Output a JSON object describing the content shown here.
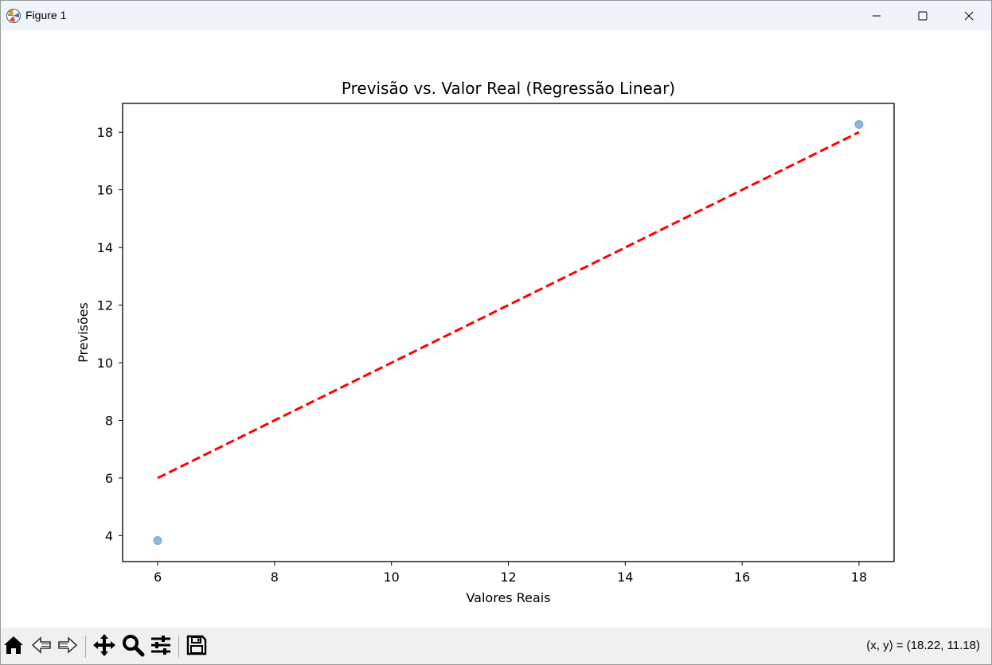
{
  "window": {
    "title": "Figure 1",
    "icons": {
      "app": "matplotlib-icon",
      "minimize": "minimize-icon",
      "maximize": "maximize-icon",
      "close": "close-icon"
    }
  },
  "toolbar": {
    "tools": [
      {
        "name": "home",
        "icon": "home-icon"
      },
      {
        "name": "back",
        "icon": "back-arrow-icon"
      },
      {
        "name": "forward",
        "icon": "forward-arrow-icon"
      },
      {
        "name": "pan",
        "icon": "move-icon"
      },
      {
        "name": "zoom",
        "icon": "zoom-icon"
      },
      {
        "name": "configure-subplots",
        "icon": "sliders-icon"
      },
      {
        "name": "save",
        "icon": "save-icon"
      }
    ],
    "coords_text": "(x, y) = (18.22, 11.18)"
  },
  "chart_data": {
    "type": "scatter",
    "title": "Previsão vs. Valor Real (Regressão Linear)",
    "xlabel": "Valores Reais",
    "ylabel": "Previsões",
    "xlim": [
      5.4,
      18.6
    ],
    "ylim": [
      3.1,
      19.0
    ],
    "xticks": [
      6,
      8,
      10,
      12,
      14,
      16,
      18
    ],
    "yticks": [
      4,
      6,
      8,
      10,
      12,
      14,
      16,
      18
    ],
    "grid": false,
    "series": [
      {
        "kind": "scatter",
        "color": "#1f77b4",
        "alpha": 0.5,
        "points": [
          {
            "x": 6,
            "y": 3.83
          },
          {
            "x": 18,
            "y": 18.27
          }
        ]
      },
      {
        "kind": "line",
        "style": "dashed",
        "color": "#ff0000",
        "points": [
          {
            "x": 6,
            "y": 6
          },
          {
            "x": 18,
            "y": 18
          }
        ]
      }
    ]
  }
}
